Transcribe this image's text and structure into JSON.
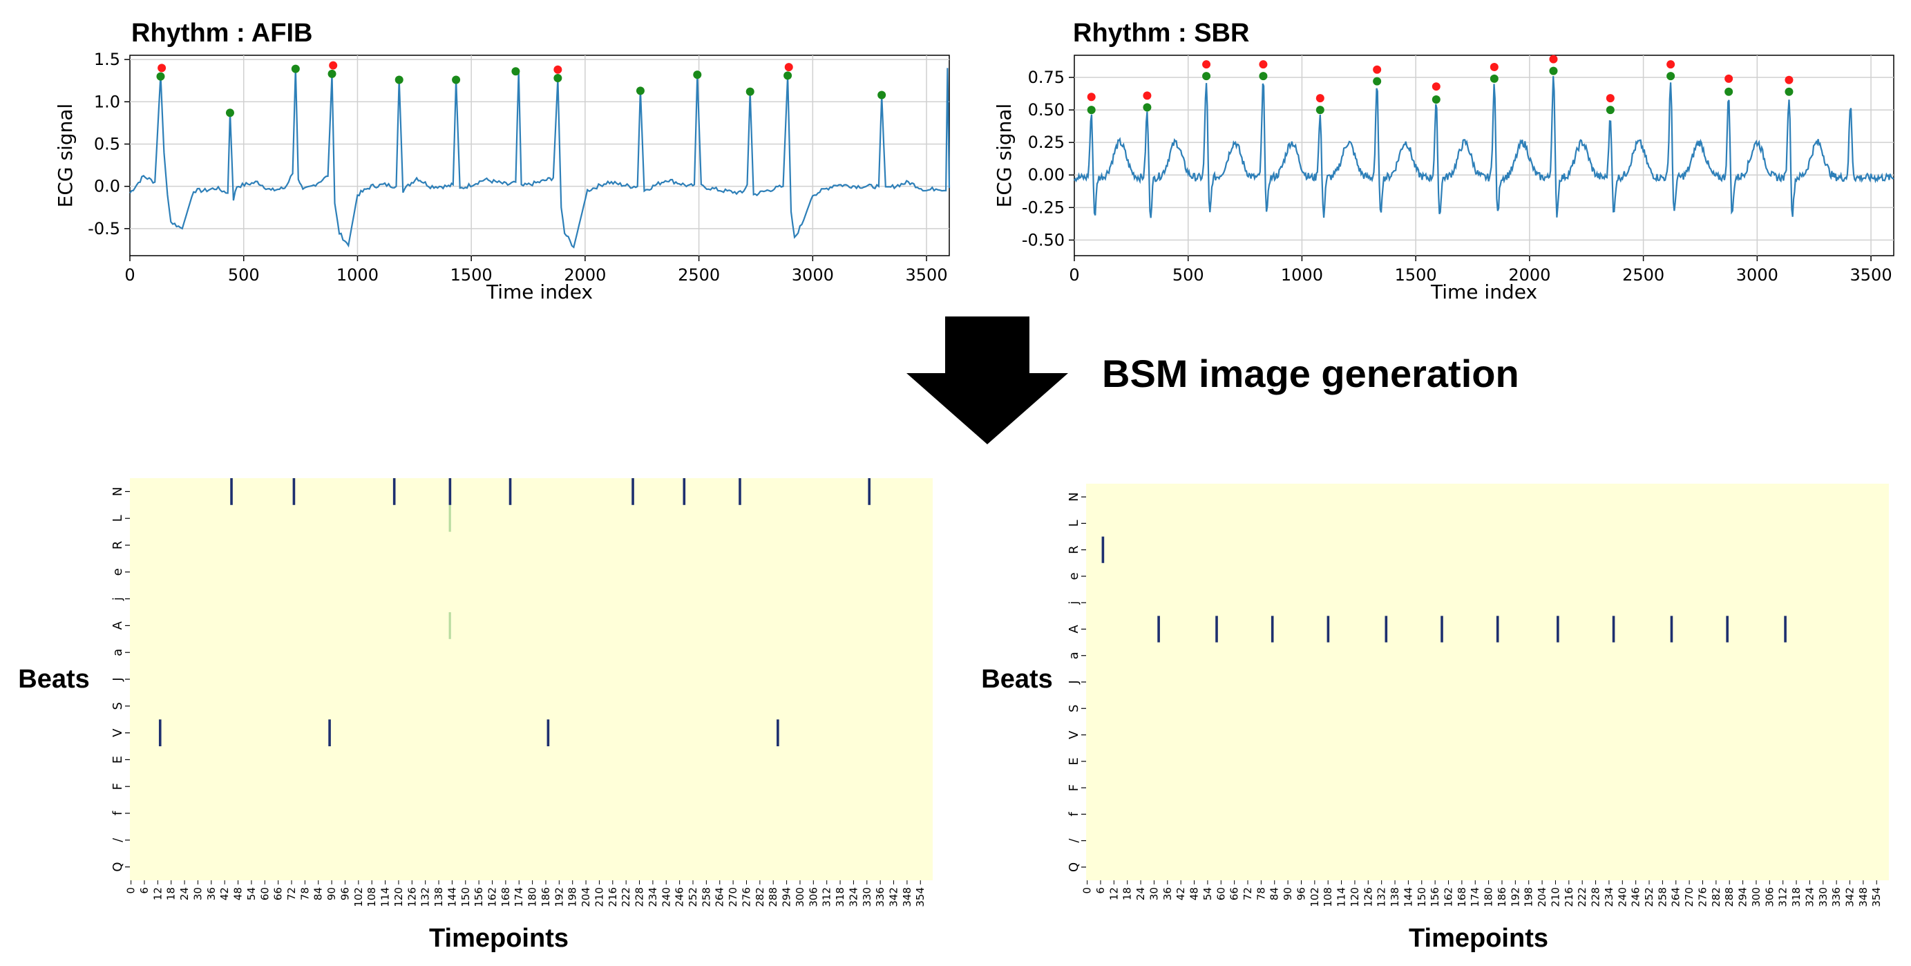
{
  "arrow_label": "BSM image generation",
  "chart_data": [
    {
      "type": "line",
      "title": "Rhythm : AFIB",
      "xlabel": "Time index",
      "ylabel": "ECG signal",
      "xlim": [
        0,
        3600
      ],
      "ylim": [
        -0.82,
        1.55
      ],
      "xticks": [
        "0",
        "500",
        "1000",
        "1500",
        "2000",
        "2500",
        "3000",
        "3500"
      ],
      "yticks": [
        "-0.5",
        "0.0",
        "0.5",
        "1.0",
        "1.5"
      ],
      "grid": true,
      "series_color": "#2d7fb8",
      "series": [
        {
          "values_x": [
            0,
            60,
            110,
            135,
            150,
            165,
            180,
            230,
            280,
            330,
            380,
            430,
            440,
            455,
            470,
            560,
            620,
            680,
            715,
            728,
            740,
            760,
            800,
            870,
            888,
            900,
            920,
            960,
            1000,
            1060,
            1120,
            1170,
            1183,
            1200,
            1260,
            1320,
            1400,
            1420,
            1433,
            1450,
            1560,
            1660,
            1695,
            1708,
            1720,
            1800,
            1860,
            1880,
            1895,
            1910,
            1950,
            2010,
            2100,
            2200,
            2230,
            2243,
            2260,
            2360,
            2460,
            2480,
            2493,
            2510,
            2600,
            2690,
            2712,
            2725,
            2740,
            2800,
            2870,
            2890,
            2905,
            2920,
            2960,
            3000,
            3100,
            3200,
            3290,
            3303,
            3320,
            3420,
            3500,
            3550,
            3585,
            3592,
            3600
          ],
          "values_y": [
            -0.08,
            0.12,
            0.05,
            1.32,
            0.4,
            -0.1,
            -0.42,
            -0.5,
            -0.05,
            -0.05,
            -0.02,
            -0.08,
            0.88,
            -0.15,
            0.0,
            0.05,
            -0.05,
            -0.02,
            0.15,
            1.4,
            0.1,
            -0.05,
            0.0,
            0.12,
            1.33,
            -0.2,
            -0.55,
            -0.7,
            -0.1,
            0.0,
            0.02,
            0.0,
            1.27,
            -0.05,
            0.1,
            0.0,
            0.0,
            0.02,
            1.27,
            -0.03,
            0.08,
            0.02,
            0.05,
            1.37,
            0.0,
            0.05,
            0.1,
            1.28,
            -0.25,
            -0.55,
            -0.72,
            -0.05,
            0.05,
            0.0,
            0.0,
            1.15,
            -0.05,
            0.08,
            0.0,
            0.02,
            1.33,
            0.0,
            -0.05,
            -0.08,
            0.02,
            1.12,
            -0.1,
            -0.05,
            0.0,
            1.31,
            -0.3,
            -0.62,
            -0.4,
            -0.1,
            0.02,
            0.0,
            0.0,
            1.08,
            -0.03,
            0.05,
            -0.05,
            -0.02,
            -0.05,
            1.4,
            -0.02
          ]
        },
        {
          "name_hidden": true,
          "peaks_green": [
            [
              135,
              1.3
            ],
            [
              440,
              0.87
            ],
            [
              728,
              1.39
            ],
            [
              888,
              1.33
            ],
            [
              1183,
              1.26
            ],
            [
              1433,
              1.26
            ],
            [
              1695,
              1.36
            ],
            [
              1880,
              1.28
            ],
            [
              2243,
              1.13
            ],
            [
              2493,
              1.32
            ],
            [
              2725,
              1.12
            ],
            [
              2890,
              1.31
            ],
            [
              3303,
              1.08
            ]
          ],
          "peaks_red": [
            [
              140,
              1.4
            ],
            [
              893,
              1.43
            ],
            [
              1880,
              1.38
            ],
            [
              2895,
              1.41
            ]
          ]
        }
      ]
    },
    {
      "type": "line",
      "title": "Rhythm : SBR",
      "xlabel": "Time index",
      "ylabel": "ECG signal",
      "xlim": [
        0,
        3600
      ],
      "ylim": [
        -0.62,
        0.92
      ],
      "xticks": [
        "0",
        "500",
        "1000",
        "1500",
        "2000",
        "2500",
        "3000",
        "3500"
      ],
      "yticks": [
        "-0.50",
        "-0.25",
        "0.00",
        "0.25",
        "0.50",
        "0.75"
      ],
      "grid": true,
      "series_color": "#2d7fb8",
      "beats_x": [
        75,
        320,
        580,
        830,
        1080,
        1330,
        1590,
        1845,
        2105,
        2355,
        2620,
        2875,
        3140
      ],
      "beats_y": [
        0.5,
        0.52,
        0.76,
        0.76,
        0.5,
        0.72,
        0.58,
        0.74,
        0.8,
        0.5,
        0.76,
        0.64,
        0.64
      ],
      "peaks_green": [
        [
          75,
          0.5
        ],
        [
          320,
          0.52
        ],
        [
          580,
          0.76
        ],
        [
          830,
          0.76
        ],
        [
          1080,
          0.5
        ],
        [
          1330,
          0.72
        ],
        [
          1590,
          0.58
        ],
        [
          1845,
          0.74
        ],
        [
          2105,
          0.8
        ],
        [
          2355,
          0.5
        ],
        [
          2620,
          0.76
        ],
        [
          2875,
          0.64
        ],
        [
          3140,
          0.64
        ]
      ],
      "peaks_red": [
        [
          75,
          0.6
        ],
        [
          320,
          0.61
        ],
        [
          580,
          0.85
        ],
        [
          830,
          0.85
        ],
        [
          1080,
          0.59
        ],
        [
          1330,
          0.81
        ],
        [
          1590,
          0.68
        ],
        [
          1845,
          0.83
        ],
        [
          2105,
          0.89
        ],
        [
          2355,
          0.59
        ],
        [
          2620,
          0.85
        ],
        [
          2875,
          0.74
        ],
        [
          3140,
          0.73
        ]
      ]
    },
    {
      "type": "heatmap",
      "xlabel": "Timepoints",
      "ylabel": "Beats",
      "y_categories": [
        "N",
        "L",
        "R",
        "e",
        "j",
        "A",
        "a",
        "J",
        "S",
        "V",
        "E",
        "F",
        "f",
        "/",
        "Q"
      ],
      "x_ticks_step": 6,
      "x_max": 354,
      "background": "#ffffd9",
      "mark_color": "#1d2f6f",
      "marks": [
        [
          45,
          "N"
        ],
        [
          73,
          "N"
        ],
        [
          118,
          "N"
        ],
        [
          143,
          "N"
        ],
        [
          170,
          "N"
        ],
        [
          225,
          "N"
        ],
        [
          248,
          "N"
        ],
        [
          273,
          "N"
        ],
        [
          331,
          "N"
        ],
        [
          13,
          "V"
        ],
        [
          89,
          "V"
        ],
        [
          187,
          "V"
        ],
        [
          290,
          "V"
        ]
      ],
      "faint_marks": [
        [
          143,
          "L"
        ],
        [
          143,
          "A"
        ]
      ]
    },
    {
      "type": "heatmap",
      "xlabel": "Timepoints",
      "ylabel": "Beats",
      "y_categories": [
        "N",
        "L",
        "R",
        "e",
        "j",
        "A",
        "a",
        "J",
        "S",
        "V",
        "E",
        "F",
        "f",
        "/",
        "Q"
      ],
      "x_ticks_step": 6,
      "x_max": 354,
      "background": "#ffffd9",
      "mark_color": "#1d2f6f",
      "marks": [
        [
          7,
          "R"
        ],
        [
          32,
          "A"
        ],
        [
          58,
          "A"
        ],
        [
          83,
          "A"
        ],
        [
          108,
          "A"
        ],
        [
          134,
          "A"
        ],
        [
          159,
          "A"
        ],
        [
          184,
          "A"
        ],
        [
          211,
          "A"
        ],
        [
          236,
          "A"
        ],
        [
          262,
          "A"
        ],
        [
          287,
          "A"
        ],
        [
          313,
          "A"
        ]
      ]
    }
  ]
}
